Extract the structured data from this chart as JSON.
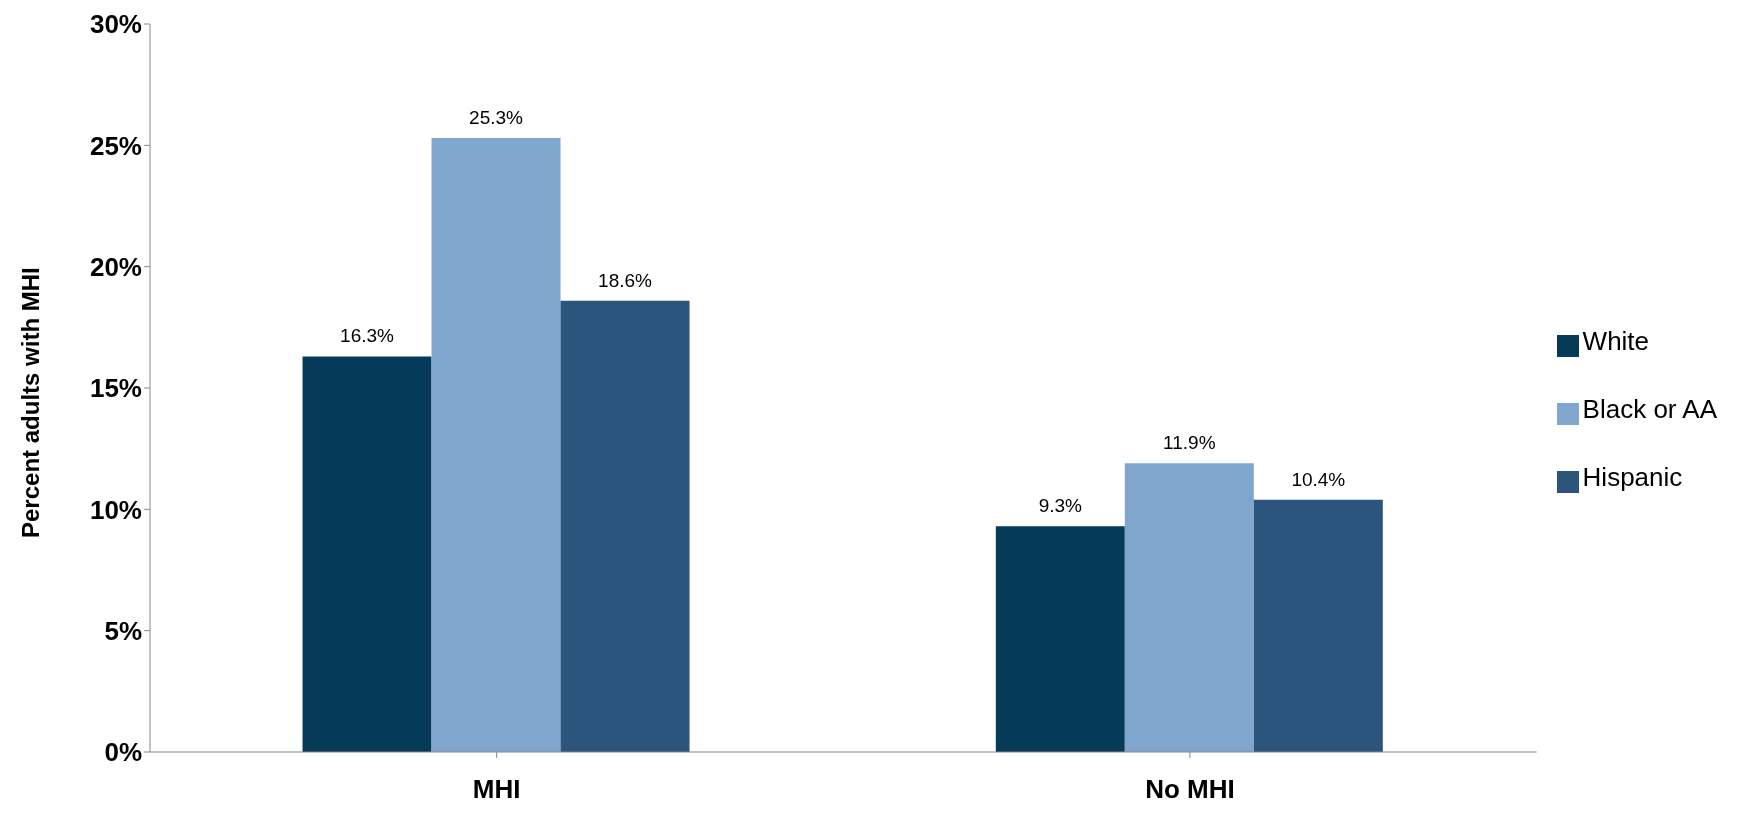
{
  "chart_data": {
    "type": "bar",
    "ylabel": "Percent adults with MHI",
    "categories": [
      "MHI",
      "No MHI"
    ],
    "series": [
      {
        "name": "White",
        "color": "#053a58",
        "values": [
          16.3,
          9.3
        ],
        "value_labels": [
          "16.3%",
          "9.3%"
        ]
      },
      {
        "name": "Black or AA",
        "color": "#80a6cd",
        "values": [
          25.3,
          11.9
        ],
        "value_labels": [
          "25.3%",
          "11.9%"
        ]
      },
      {
        "name": "Hispanic",
        "color": "#2c557e",
        "values": [
          18.6,
          10.4
        ],
        "value_labels": [
          "18.6%",
          "10.4%"
        ]
      }
    ],
    "ylim": [
      0,
      30
    ],
    "yticks": [
      {
        "value": 0,
        "label": "0%"
      },
      {
        "value": 5,
        "label": "5%"
      },
      {
        "value": 10,
        "label": "10%"
      },
      {
        "value": 15,
        "label": "15%"
      },
      {
        "value": 20,
        "label": "20%"
      },
      {
        "value": 25,
        "label": "25%"
      },
      {
        "value": 30,
        "label": "30%"
      }
    ],
    "grid": false,
    "legend": "right"
  }
}
